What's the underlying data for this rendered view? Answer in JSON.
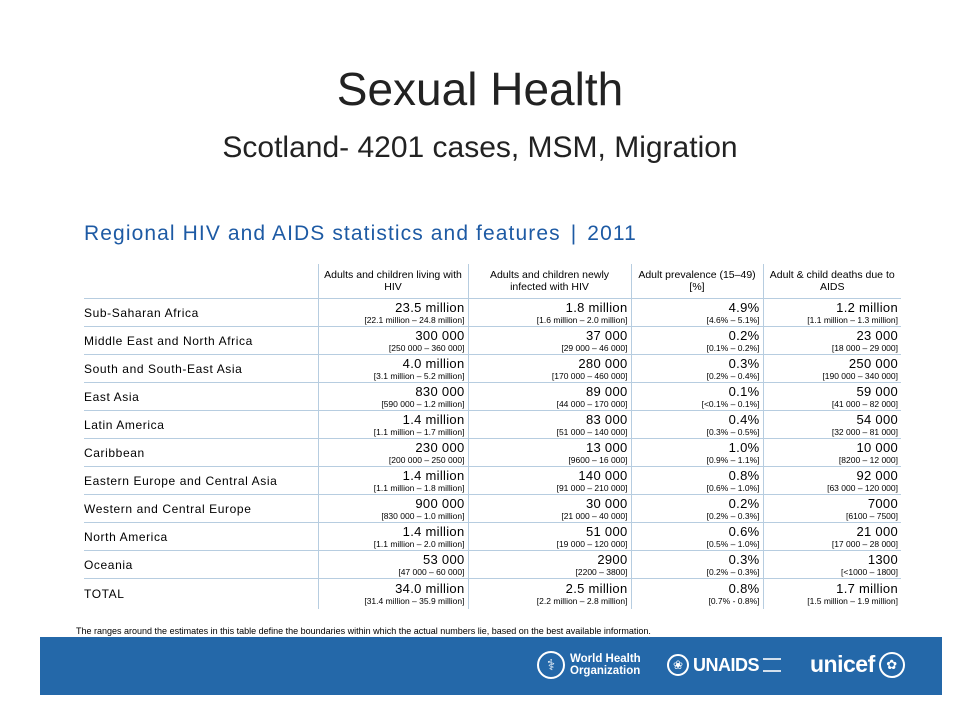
{
  "slide": {
    "title": "Sexual Health",
    "subtitle": "Scotland- 4201 cases, MSM, Migration"
  },
  "figure": {
    "heading": "Regional HIV and AIDS statistics and features",
    "separator": "|",
    "year": "2011",
    "columns": [
      "Adults and children living with HIV",
      "Adults and children newly infected with HIV",
      "Adult prevalence (15–49) [%]",
      "Adult & child deaths due to AIDS"
    ],
    "rows": [
      {
        "region": "Sub-Saharan Africa",
        "cells": [
          {
            "value": "23.5 million",
            "range": "[22.1 million – 24.8 million]"
          },
          {
            "value": "1.8 million",
            "range": "[1.6 million – 2.0 million]"
          },
          {
            "value": "4.9%",
            "range": "[4.6% – 5.1%]"
          },
          {
            "value": "1.2 million",
            "range": "[1.1 million – 1.3 million]"
          }
        ]
      },
      {
        "region": "Middle East and North Africa",
        "cells": [
          {
            "value": "300 000",
            "range": "[250 000 – 360 000]"
          },
          {
            "value": "37 000",
            "range": "[29 000 – 46 000]"
          },
          {
            "value": "0.2%",
            "range": "[0.1% – 0.2%]"
          },
          {
            "value": "23 000",
            "range": "[18 000 – 29 000]"
          }
        ]
      },
      {
        "region": "South and South-East Asia",
        "cells": [
          {
            "value": "4.0 million",
            "range": "[3.1 million – 5.2 million]"
          },
          {
            "value": "280 000",
            "range": "[170 000 – 460 000]"
          },
          {
            "value": "0.3%",
            "range": "[0.2% – 0.4%]"
          },
          {
            "value": "250 000",
            "range": "[190 000 – 340 000]"
          }
        ]
      },
      {
        "region": "East Asia",
        "cells": [
          {
            "value": "830 000",
            "range": "[590 000 – 1.2 million]"
          },
          {
            "value": "89 000",
            "range": "[44 000 – 170 000]"
          },
          {
            "value": "0.1%",
            "range": "[<0.1% – 0.1%]"
          },
          {
            "value": "59 000",
            "range": "[41 000 – 82 000]"
          }
        ]
      },
      {
        "region": "Latin America",
        "cells": [
          {
            "value": "1.4 million",
            "range": "[1.1 million – 1.7 million]"
          },
          {
            "value": "83 000",
            "range": "[51 000 – 140 000]"
          },
          {
            "value": "0.4%",
            "range": "[0.3% – 0.5%]"
          },
          {
            "value": "54 000",
            "range": "[32 000 – 81 000]"
          }
        ]
      },
      {
        "region": "Caribbean",
        "cells": [
          {
            "value": "230 000",
            "range": "[200 000 – 250 000]"
          },
          {
            "value": "13 000",
            "range": "[9600 – 16 000]"
          },
          {
            "value": "1.0%",
            "range": "[0.9% – 1.1%]"
          },
          {
            "value": "10 000",
            "range": "[8200 – 12 000]"
          }
        ]
      },
      {
        "region": "Eastern Europe and Central Asia",
        "cells": [
          {
            "value": "1.4 million",
            "range": "[1.1 million – 1.8 million]"
          },
          {
            "value": "140 000",
            "range": "[91 000 – 210 000]"
          },
          {
            "value": "0.8%",
            "range": "[0.6% – 1.0%]"
          },
          {
            "value": "92 000",
            "range": "[63 000 – 120 000]"
          }
        ]
      },
      {
        "region": "Western and Central Europe",
        "cells": [
          {
            "value": "900 000",
            "range": "[830 000 – 1.0 million]"
          },
          {
            "value": "30 000",
            "range": "[21 000 – 40 000]"
          },
          {
            "value": "0.2%",
            "range": "[0.2% – 0.3%]"
          },
          {
            "value": "7000",
            "range": "[6100 – 7500]"
          }
        ]
      },
      {
        "region": "North America",
        "cells": [
          {
            "value": "1.4 million",
            "range": "[1.1 million – 2.0 million]"
          },
          {
            "value": "51 000",
            "range": "[19 000 – 120 000]"
          },
          {
            "value": "0.6%",
            "range": "[0.5% – 1.0%]"
          },
          {
            "value": "21 000",
            "range": "[17 000 – 28 000]"
          }
        ]
      },
      {
        "region": "Oceania",
        "cells": [
          {
            "value": "53 000",
            "range": "[47 000 – 60 000]"
          },
          {
            "value": "2900",
            "range": "[2200 – 3800]"
          },
          {
            "value": "0.3%",
            "range": "[0.2% – 0.3%]"
          },
          {
            "value": "1300",
            "range": "[<1000 – 1800]"
          }
        ]
      }
    ],
    "total": {
      "region": "TOTAL",
      "cells": [
        {
          "value": "34.0 million",
          "range": "[31.4 million – 35.9 million]"
        },
        {
          "value": "2.5 million",
          "range": "[2.2 million – 2.8 million]"
        },
        {
          "value": "0.8%",
          "range": "[0.7% - 0.8%]"
        },
        {
          "value": "1.7 million",
          "range": "[1.5 million – 1.9 million]"
        }
      ]
    },
    "footnote": "The ranges around the estimates in this table define the boundaries within which the actual numbers lie, based on the best available information."
  },
  "footer": {
    "color": "#2468a9",
    "logos": [
      {
        "name": "who",
        "icon": "who-emblem-icon",
        "line1": "World Health",
        "line2": "Organization"
      },
      {
        "name": "unaids",
        "icon": "un-emblem-icon",
        "text": "UNAIDS"
      },
      {
        "name": "unicef",
        "icon": "unicef-emblem-icon",
        "text": "unicef"
      }
    ]
  }
}
